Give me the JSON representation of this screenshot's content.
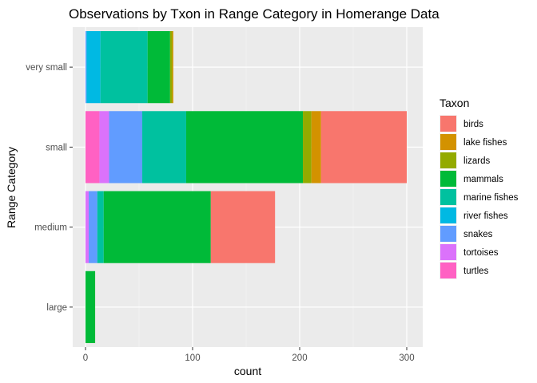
{
  "chart_data": {
    "type": "bar",
    "orientation": "horizontal",
    "stacked": true,
    "title": "Observations by Txon in Range Category in Homerange Data",
    "xlabel": "count",
    "ylabel": "Range Category",
    "xlim": [
      0,
      310
    ],
    "xticks": [
      0,
      100,
      200,
      300
    ],
    "xtick_labels": [
      "0",
      "100",
      "200",
      "300"
    ],
    "grid": true,
    "legend": {
      "title": "Taxon",
      "position": "right"
    },
    "categories": [
      "large",
      "medium",
      "small",
      "very small"
    ],
    "series": [
      {
        "name": "turtles",
        "color": "#FF61C3",
        "values": [
          0,
          0,
          13,
          0
        ]
      },
      {
        "name": "tortoises",
        "color": "#DB72FB",
        "values": [
          0,
          3,
          9,
          0
        ]
      },
      {
        "name": "snakes",
        "color": "#619CFF",
        "values": [
          0,
          8,
          31,
          1
        ]
      },
      {
        "name": "river fishes",
        "color": "#00B9E3",
        "values": [
          0,
          0,
          0,
          13
        ]
      },
      {
        "name": "marine fishes",
        "color": "#00C19F",
        "values": [
          0,
          6,
          41,
          44
        ]
      },
      {
        "name": "mammals",
        "color": "#00BA38",
        "values": [
          9,
          100,
          109,
          21
        ]
      },
      {
        "name": "lizards",
        "color": "#93AA00",
        "values": [
          0,
          0,
          8,
          2
        ]
      },
      {
        "name": "lake fishes",
        "color": "#D39200",
        "values": [
          0,
          0,
          9,
          1
        ]
      },
      {
        "name": "birds",
        "color": "#F8766D",
        "values": [
          0,
          60,
          80,
          0
        ]
      }
    ]
  }
}
